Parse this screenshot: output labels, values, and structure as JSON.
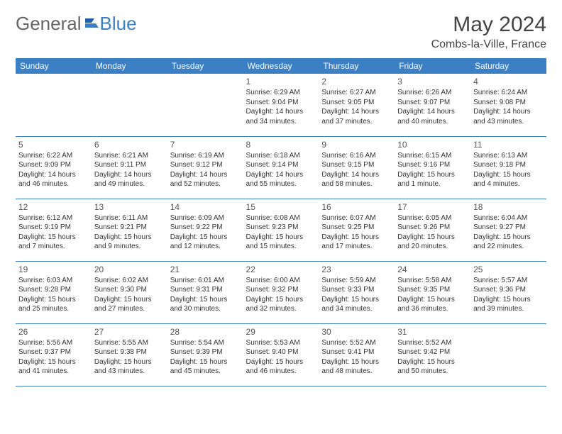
{
  "logo": {
    "part1": "General",
    "part2": "Blue"
  },
  "title": "May 2024",
  "location": "Combs-la-Ville, France",
  "colors": {
    "header_bg": "#3b7fc4",
    "header_text": "#ffffff",
    "border": "#3b7fc4",
    "text": "#333333",
    "background": "#ffffff"
  },
  "weekdays": [
    "Sunday",
    "Monday",
    "Tuesday",
    "Wednesday",
    "Thursday",
    "Friday",
    "Saturday"
  ],
  "startOffset": 3,
  "days": [
    {
      "n": "1",
      "sunrise": "6:29 AM",
      "sunset": "9:04 PM",
      "daylight": "14 hours and 34 minutes."
    },
    {
      "n": "2",
      "sunrise": "6:27 AM",
      "sunset": "9:05 PM",
      "daylight": "14 hours and 37 minutes."
    },
    {
      "n": "3",
      "sunrise": "6:26 AM",
      "sunset": "9:07 PM",
      "daylight": "14 hours and 40 minutes."
    },
    {
      "n": "4",
      "sunrise": "6:24 AM",
      "sunset": "9:08 PM",
      "daylight": "14 hours and 43 minutes."
    },
    {
      "n": "5",
      "sunrise": "6:22 AM",
      "sunset": "9:09 PM",
      "daylight": "14 hours and 46 minutes."
    },
    {
      "n": "6",
      "sunrise": "6:21 AM",
      "sunset": "9:11 PM",
      "daylight": "14 hours and 49 minutes."
    },
    {
      "n": "7",
      "sunrise": "6:19 AM",
      "sunset": "9:12 PM",
      "daylight": "14 hours and 52 minutes."
    },
    {
      "n": "8",
      "sunrise": "6:18 AM",
      "sunset": "9:14 PM",
      "daylight": "14 hours and 55 minutes."
    },
    {
      "n": "9",
      "sunrise": "6:16 AM",
      "sunset": "9:15 PM",
      "daylight": "14 hours and 58 minutes."
    },
    {
      "n": "10",
      "sunrise": "6:15 AM",
      "sunset": "9:16 PM",
      "daylight": "15 hours and 1 minute."
    },
    {
      "n": "11",
      "sunrise": "6:13 AM",
      "sunset": "9:18 PM",
      "daylight": "15 hours and 4 minutes."
    },
    {
      "n": "12",
      "sunrise": "6:12 AM",
      "sunset": "9:19 PM",
      "daylight": "15 hours and 7 minutes."
    },
    {
      "n": "13",
      "sunrise": "6:11 AM",
      "sunset": "9:21 PM",
      "daylight": "15 hours and 9 minutes."
    },
    {
      "n": "14",
      "sunrise": "6:09 AM",
      "sunset": "9:22 PM",
      "daylight": "15 hours and 12 minutes."
    },
    {
      "n": "15",
      "sunrise": "6:08 AM",
      "sunset": "9:23 PM",
      "daylight": "15 hours and 15 minutes."
    },
    {
      "n": "16",
      "sunrise": "6:07 AM",
      "sunset": "9:25 PM",
      "daylight": "15 hours and 17 minutes."
    },
    {
      "n": "17",
      "sunrise": "6:05 AM",
      "sunset": "9:26 PM",
      "daylight": "15 hours and 20 minutes."
    },
    {
      "n": "18",
      "sunrise": "6:04 AM",
      "sunset": "9:27 PM",
      "daylight": "15 hours and 22 minutes."
    },
    {
      "n": "19",
      "sunrise": "6:03 AM",
      "sunset": "9:28 PM",
      "daylight": "15 hours and 25 minutes."
    },
    {
      "n": "20",
      "sunrise": "6:02 AM",
      "sunset": "9:30 PM",
      "daylight": "15 hours and 27 minutes."
    },
    {
      "n": "21",
      "sunrise": "6:01 AM",
      "sunset": "9:31 PM",
      "daylight": "15 hours and 30 minutes."
    },
    {
      "n": "22",
      "sunrise": "6:00 AM",
      "sunset": "9:32 PM",
      "daylight": "15 hours and 32 minutes."
    },
    {
      "n": "23",
      "sunrise": "5:59 AM",
      "sunset": "9:33 PM",
      "daylight": "15 hours and 34 minutes."
    },
    {
      "n": "24",
      "sunrise": "5:58 AM",
      "sunset": "9:35 PM",
      "daylight": "15 hours and 36 minutes."
    },
    {
      "n": "25",
      "sunrise": "5:57 AM",
      "sunset": "9:36 PM",
      "daylight": "15 hours and 39 minutes."
    },
    {
      "n": "26",
      "sunrise": "5:56 AM",
      "sunset": "9:37 PM",
      "daylight": "15 hours and 41 minutes."
    },
    {
      "n": "27",
      "sunrise": "5:55 AM",
      "sunset": "9:38 PM",
      "daylight": "15 hours and 43 minutes."
    },
    {
      "n": "28",
      "sunrise": "5:54 AM",
      "sunset": "9:39 PM",
      "daylight": "15 hours and 45 minutes."
    },
    {
      "n": "29",
      "sunrise": "5:53 AM",
      "sunset": "9:40 PM",
      "daylight": "15 hours and 46 minutes."
    },
    {
      "n": "30",
      "sunrise": "5:52 AM",
      "sunset": "9:41 PM",
      "daylight": "15 hours and 48 minutes."
    },
    {
      "n": "31",
      "sunrise": "5:52 AM",
      "sunset": "9:42 PM",
      "daylight": "15 hours and 50 minutes."
    }
  ],
  "labels": {
    "sunrise": "Sunrise:",
    "sunset": "Sunset:",
    "daylight": "Daylight:"
  }
}
